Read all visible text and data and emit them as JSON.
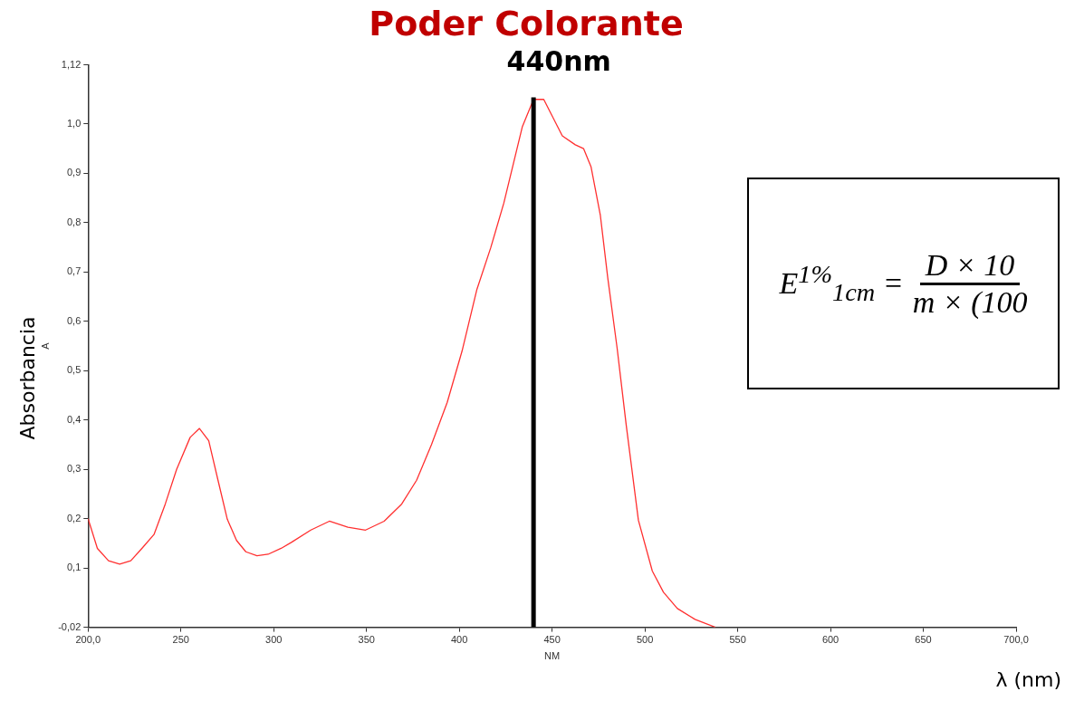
{
  "chart_data": {
    "type": "line",
    "title": "Poder Colorante",
    "xlabel": "NM",
    "ylabel": "A",
    "x": [
      200,
      205,
      211,
      217,
      223,
      229,
      235.5,
      241.6,
      247.7,
      255,
      260,
      265,
      270,
      275,
      280,
      285,
      291,
      297,
      304,
      309.5,
      320,
      330,
      340,
      349.5,
      359.5,
      369,
      377,
      385,
      393.5,
      401.5,
      409.5,
      417,
      424,
      434,
      440,
      445.5,
      455.5,
      462.5,
      467,
      471,
      476,
      480,
      485,
      490,
      496.5,
      504,
      510,
      517.5,
      527,
      538
    ],
    "series": [
      {
        "color": "#ff3030",
        "values": [
          0.2,
          0.14,
          0.115,
          0.108,
          0.115,
          0.14,
          0.168,
          0.23,
          0.3,
          0.365,
          0.383,
          0.358,
          0.278,
          0.199,
          0.156,
          0.133,
          0.125,
          0.128,
          0.14,
          0.152,
          0.177,
          0.195,
          0.183,
          0.177,
          0.195,
          0.23,
          0.278,
          0.35,
          0.436,
          0.54,
          0.665,
          0.75,
          0.84,
          0.995,
          1.05,
          1.05,
          0.976,
          0.958,
          0.95,
          0.913,
          0.815,
          0.688,
          0.547,
          0.388,
          0.197,
          0.094,
          0.051,
          0.018,
          -0.004,
          -0.02
        ]
      }
    ],
    "xlim": [
      200,
      700
    ],
    "xticks": [
      {
        "value": 200,
        "label": "200,0"
      },
      250,
      300,
      350,
      400,
      450,
      500,
      550,
      600,
      650,
      {
        "value": 700,
        "label": "700,0"
      }
    ],
    "ylim": [
      -0.02,
      1.12
    ],
    "yticks": [
      {
        "value": -0.02,
        "label": "-0,02"
      },
      {
        "value": 0.1,
        "label": "0,1"
      },
      {
        "value": 0.2,
        "label": "0,2"
      },
      {
        "value": 0.3,
        "label": "0,3"
      },
      {
        "value": 0.4,
        "label": "0,4"
      },
      {
        "value": 0.5,
        "label": "0,5"
      },
      {
        "value": 0.6,
        "label": "0,6"
      },
      {
        "value": 0.7,
        "label": "0,7"
      },
      {
        "value": 0.8,
        "label": "0,8"
      },
      {
        "value": 0.9,
        "label": "0,9"
      },
      {
        "value": 1.0,
        "label": "1,0"
      },
      {
        "value": 1.12,
        "label": "1,12"
      }
    ],
    "ref_lines": [
      {
        "axis": "x",
        "value": 440,
        "label": "440nm",
        "color": "#000000"
      }
    ],
    "annotations": [
      "Absorbancia",
      "λ (nm)",
      "E$^{1%}$$_{1cm}$ =",
      "D × 10",
      "m × (100"
    ],
    "grid": false,
    "legend": false,
    "marker": "none",
    "line_style": "solid"
  }
}
